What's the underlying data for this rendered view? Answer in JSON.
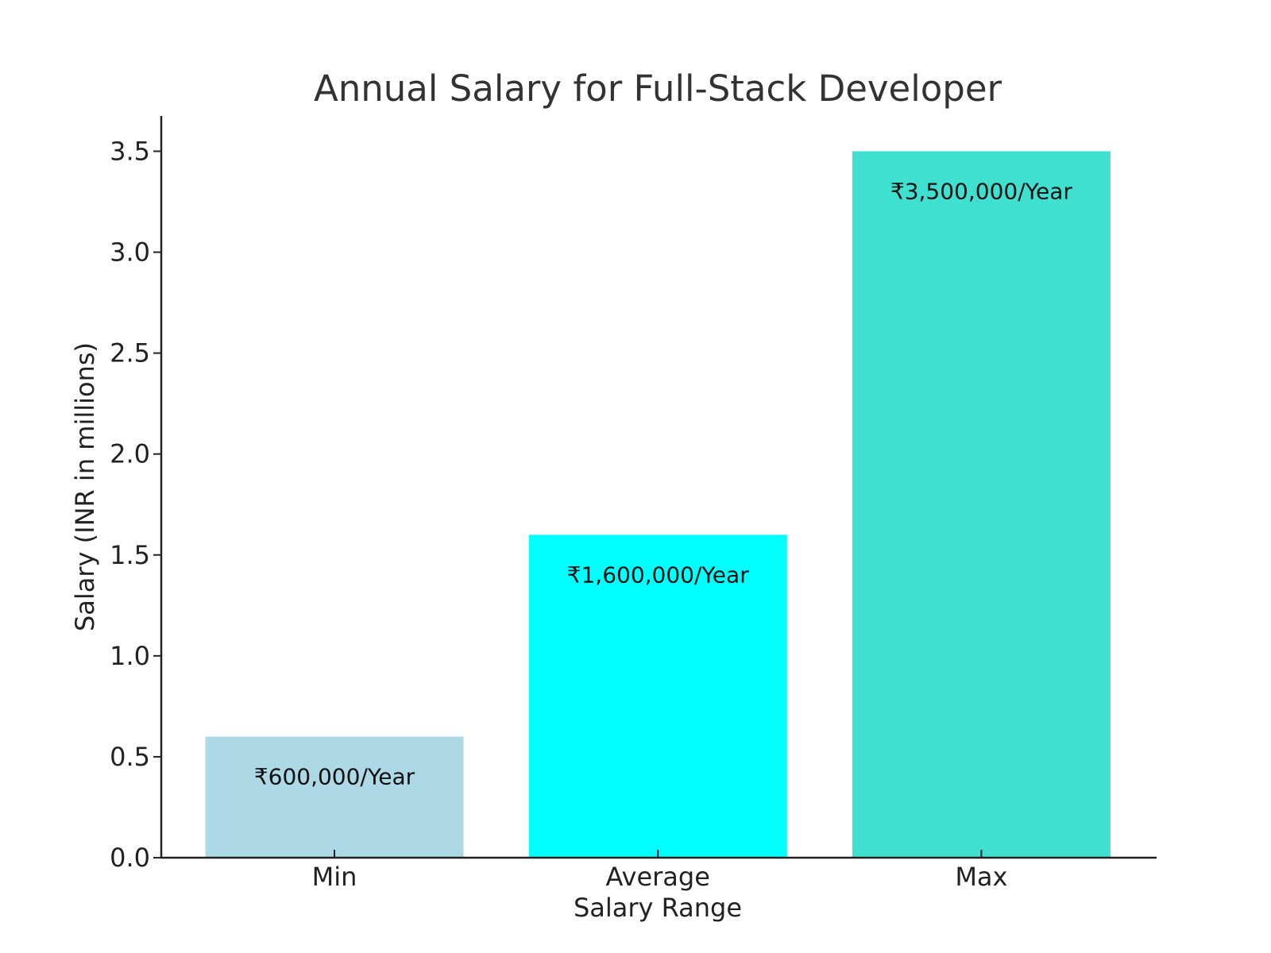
{
  "chart_data": {
    "type": "bar",
    "title": "Annual Salary for Full-Stack Developer",
    "xlabel": "Salary Range",
    "ylabel": "Salary (INR in millions)",
    "categories": [
      "Min",
      "Average",
      "Max"
    ],
    "values": [
      0.6,
      1.6,
      3.5
    ],
    "data_labels": [
      "₹600,000/Year",
      "₹1,600,000/Year",
      "₹3,500,000/Year"
    ],
    "colors": [
      "#add8e6",
      "#00ffff",
      "#40e0d0"
    ],
    "ylim": [
      0,
      3.675
    ],
    "yticks": [
      0.0,
      0.5,
      1.0,
      1.5,
      2.0,
      2.5,
      3.0,
      3.5
    ],
    "ytick_labels": [
      "0.0",
      "0.5",
      "1.0",
      "1.5",
      "2.0",
      "2.5",
      "3.0",
      "3.5"
    ],
    "grid": false,
    "legend": "none"
  }
}
